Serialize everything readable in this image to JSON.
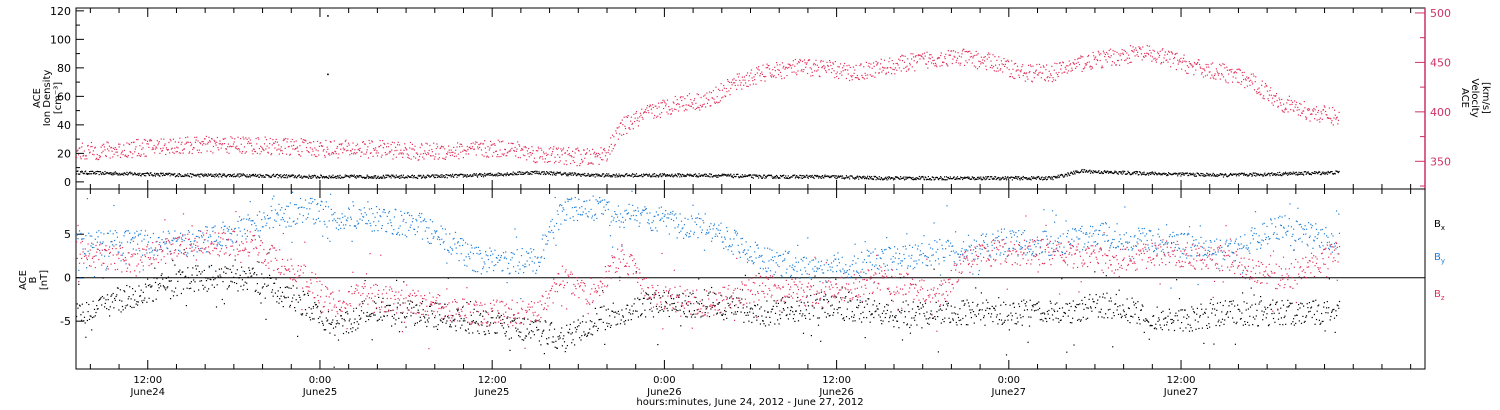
{
  "chart_data": [
    {
      "type": "scatter",
      "panel": "top",
      "title": "",
      "ylabel_left": [
        "ACE",
        "Ion Density",
        "[cm⁻³]"
      ],
      "ylabel_right": [
        "ACE",
        "Velocity",
        "[km/s]"
      ],
      "ylim_left": [
        -5,
        122
      ],
      "ylim_right": [
        322,
        505
      ],
      "yticks_left": [
        0,
        20,
        40,
        60,
        80,
        100,
        120
      ],
      "yticks_right": [
        350,
        400,
        450,
        500
      ],
      "right_axis_color": "#cc3366",
      "series": [
        {
          "name": "",
          "axis": "left",
          "color": "#000000",
          "x_hours": [
            0,
            4,
            8,
            12,
            16,
            20,
            24,
            28,
            32,
            36,
            40,
            44,
            48,
            52,
            56,
            60,
            64,
            68,
            70,
            72,
            76,
            80,
            84,
            88
          ],
          "y": [
            7,
            6,
            5,
            5,
            4,
            4,
            4,
            5,
            7,
            5,
            5,
            5,
            4,
            4,
            3,
            3,
            3,
            3,
            8,
            7,
            6,
            5,
            6,
            7
          ]
        },
        {
          "name": "",
          "axis": "right",
          "color": "#e0305a",
          "x_hours": [
            0,
            3,
            6,
            9,
            12,
            15,
            18,
            21,
            24,
            26,
            28,
            30,
            32,
            34,
            36,
            37,
            38,
            40,
            42,
            44,
            46,
            48,
            50,
            52,
            54,
            56,
            58,
            60,
            62,
            64,
            65,
            66,
            68,
            70,
            72,
            74,
            76,
            78,
            80,
            82,
            84,
            86,
            88
          ],
          "y": [
            360,
            362,
            366,
            367,
            367,
            365,
            363,
            363,
            360,
            361,
            362,
            364,
            358,
            356,
            354,
            360,
            385,
            400,
            410,
            412,
            430,
            440,
            445,
            445,
            440,
            445,
            450,
            455,
            455,
            450,
            445,
            440,
            440,
            450,
            455,
            460,
            455,
            445,
            440,
            430,
            410,
            400,
            395
          ]
        }
      ],
      "isolated_points": [
        {
          "x_hours": 17.5,
          "y": 117
        },
        {
          "x_hours": 17.5,
          "y": 76
        }
      ]
    },
    {
      "type": "scatter",
      "panel": "bottom",
      "title": "",
      "ylabel_left": [
        "ACE",
        "B",
        "[nT]"
      ],
      "ylim": [
        -10.5,
        10.2
      ],
      "yticks": [
        -5,
        0,
        5
      ],
      "zero_line": true,
      "series": [
        {
          "name": "Bx",
          "label_main": "B",
          "label_sub": "x",
          "color": "#000000",
          "x_hours": [
            0,
            4,
            8,
            12,
            16,
            18,
            20,
            24,
            28,
            32,
            34,
            36,
            40,
            44,
            48,
            52,
            56,
            60,
            62,
            64,
            68,
            72,
            76,
            80,
            84,
            88
          ],
          "y": [
            -4,
            -2,
            0,
            0,
            -3,
            -6,
            -4,
            -4,
            -5,
            -6,
            -7,
            -5,
            -3,
            -3,
            -4,
            -3,
            -4,
            -4,
            -4,
            -4,
            -4,
            -3,
            -5,
            -4,
            -4,
            -4
          ]
        },
        {
          "name": "By",
          "label_main": "B",
          "label_sub": "y",
          "color": "#1f7fd6",
          "x_hours": [
            0,
            4,
            8,
            12,
            14,
            16,
            18,
            20,
            24,
            26,
            28,
            32,
            34,
            36,
            38,
            40,
            42,
            44,
            46,
            48,
            52,
            56,
            60,
            64,
            68,
            72,
            76,
            80,
            84,
            88
          ],
          "y": [
            4,
            4,
            4,
            6,
            7,
            8,
            7,
            7,
            6,
            4,
            2,
            2,
            8,
            8,
            7,
            7,
            6,
            6,
            4,
            2,
            1,
            2,
            3,
            4,
            4,
            5,
            4,
            3,
            6,
            4
          ]
        },
        {
          "name": "Bz",
          "label_main": "B",
          "label_sub": "z",
          "color": "#e0305a",
          "x_hours": [
            0,
            4,
            8,
            12,
            14,
            16,
            18,
            20,
            24,
            28,
            32,
            34,
            36,
            38,
            40,
            44,
            48,
            52,
            56,
            60,
            62,
            64,
            68,
            72,
            76,
            80,
            84,
            88
          ],
          "y": [
            3,
            2,
            4,
            4,
            2,
            0,
            -3,
            -2,
            -3,
            -4,
            -4,
            0,
            -2,
            3,
            -2,
            -3,
            -1,
            -2,
            0,
            -2,
            2,
            3,
            3,
            2,
            3,
            2,
            0,
            3
          ]
        }
      ]
    }
  ],
  "x_axis": {
    "start_label": "12:00 June 24 offset",
    "xlim_hours": [
      0,
      94
    ],
    "major_ticks": [
      {
        "hours": 5,
        "time": "12:00",
        "date": "June24"
      },
      {
        "hours": 17,
        "time": "0:00",
        "date": "June25"
      },
      {
        "hours": 29,
        "time": "12:00",
        "date": "June25"
      },
      {
        "hours": 41,
        "time": "0:00",
        "date": "June26"
      },
      {
        "hours": 53,
        "time": "12:00",
        "date": "June26"
      },
      {
        "hours": 65,
        "time": "0:00",
        "date": "June27"
      },
      {
        "hours": 77,
        "time": "12:00",
        "date": "June27"
      }
    ],
    "title": "hours:minutes, June 24, 2012 - June 27, 2012"
  }
}
